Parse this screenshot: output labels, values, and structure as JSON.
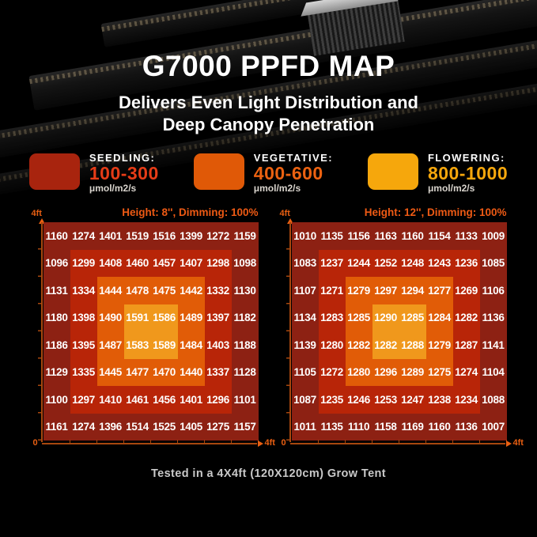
{
  "header": {
    "title": "G7000 PPFD MAP",
    "subtitle_line1": "Delivers Even Light Distribution and",
    "subtitle_line2": "Deep Canopy Penetration"
  },
  "legend": {
    "items": [
      {
        "name": "SEEDLING:",
        "range": "100-300",
        "unit": "μmol/m2/s"
      },
      {
        "name": "VEGETATIVE:",
        "range": "400-600",
        "unit": "μmol/m2/s"
      },
      {
        "name": "FLOWERING:",
        "range": "800-1000",
        "unit": "μmol/m2/s"
      }
    ]
  },
  "chart_data": [
    {
      "type": "heatmap",
      "title": "Height: 8'', Dimming: 100%",
      "x_axis": {
        "min_label": "0",
        "max_label": "4ft",
        "range_ft": [
          0,
          4
        ]
      },
      "y_axis": {
        "max_label": "4ft",
        "range_ft": [
          0,
          4
        ]
      },
      "unit": "μmol/m2/s",
      "values": [
        [
          1160,
          1274,
          1401,
          1519,
          1516,
          1399,
          1272,
          1159
        ],
        [
          1096,
          1299,
          1408,
          1460,
          1457,
          1407,
          1298,
          1098
        ],
        [
          1131,
          1334,
          1444,
          1478,
          1475,
          1442,
          1332,
          1130
        ],
        [
          1180,
          1398,
          1490,
          1591,
          1586,
          1489,
          1397,
          1182
        ],
        [
          1186,
          1395,
          1487,
          1583,
          1589,
          1484,
          1403,
          1188
        ],
        [
          1129,
          1335,
          1445,
          1477,
          1470,
          1440,
          1337,
          1128
        ],
        [
          1100,
          1297,
          1410,
          1461,
          1456,
          1401,
          1296,
          1101
        ],
        [
          1161,
          1274,
          1396,
          1514,
          1525,
          1405,
          1275,
          1157
        ]
      ]
    },
    {
      "type": "heatmap",
      "title": "Height: 12'', Dimming: 100%",
      "x_axis": {
        "min_label": "0",
        "max_label": "4ft",
        "range_ft": [
          0,
          4
        ]
      },
      "y_axis": {
        "max_label": "4ft",
        "range_ft": [
          0,
          4
        ]
      },
      "unit": "μmol/m2/s",
      "values": [
        [
          1010,
          1135,
          1156,
          1163,
          1160,
          1154,
          1133,
          1009
        ],
        [
          1083,
          1237,
          1244,
          1252,
          1248,
          1243,
          1236,
          1085
        ],
        [
          1107,
          1271,
          1279,
          1297,
          1294,
          1277,
          1269,
          1106
        ],
        [
          1134,
          1283,
          1285,
          1290,
          1285,
          1284,
          1282,
          1136
        ],
        [
          1139,
          1280,
          1282,
          1282,
          1288,
          1279,
          1287,
          1141
        ],
        [
          1105,
          1272,
          1280,
          1296,
          1289,
          1275,
          1274,
          1104
        ],
        [
          1087,
          1235,
          1246,
          1253,
          1247,
          1238,
          1234,
          1088
        ],
        [
          1011,
          1135,
          1110,
          1158,
          1169,
          1160,
          1136,
          1007
        ]
      ]
    }
  ],
  "footer": {
    "note": "Tested in a 4X4ft (120X120cm) Grow Tent"
  },
  "colors": {
    "background": "#000000",
    "title_text": "#ffffff",
    "zone_outer": "#8d2113",
    "zone_ring2": "#b82508",
    "zone_ring3": "#e15c07",
    "zone_center": "#f0981c",
    "cell_text": "#ffffff",
    "axis_label": "#e95f12",
    "axis_line": "#a8470e",
    "map_title": "#ee5a14",
    "seedling_swatch": "#a8240e",
    "vegetative_swatch": "#e05907",
    "flowering_swatch": "#f6a70c",
    "seedling_range": "#e63c17",
    "vegetative_range": "#ec6211",
    "flowering_range": "#f6a70c",
    "legend_unit": "#d9d4cd",
    "footer_text": "#c9c9c9"
  }
}
